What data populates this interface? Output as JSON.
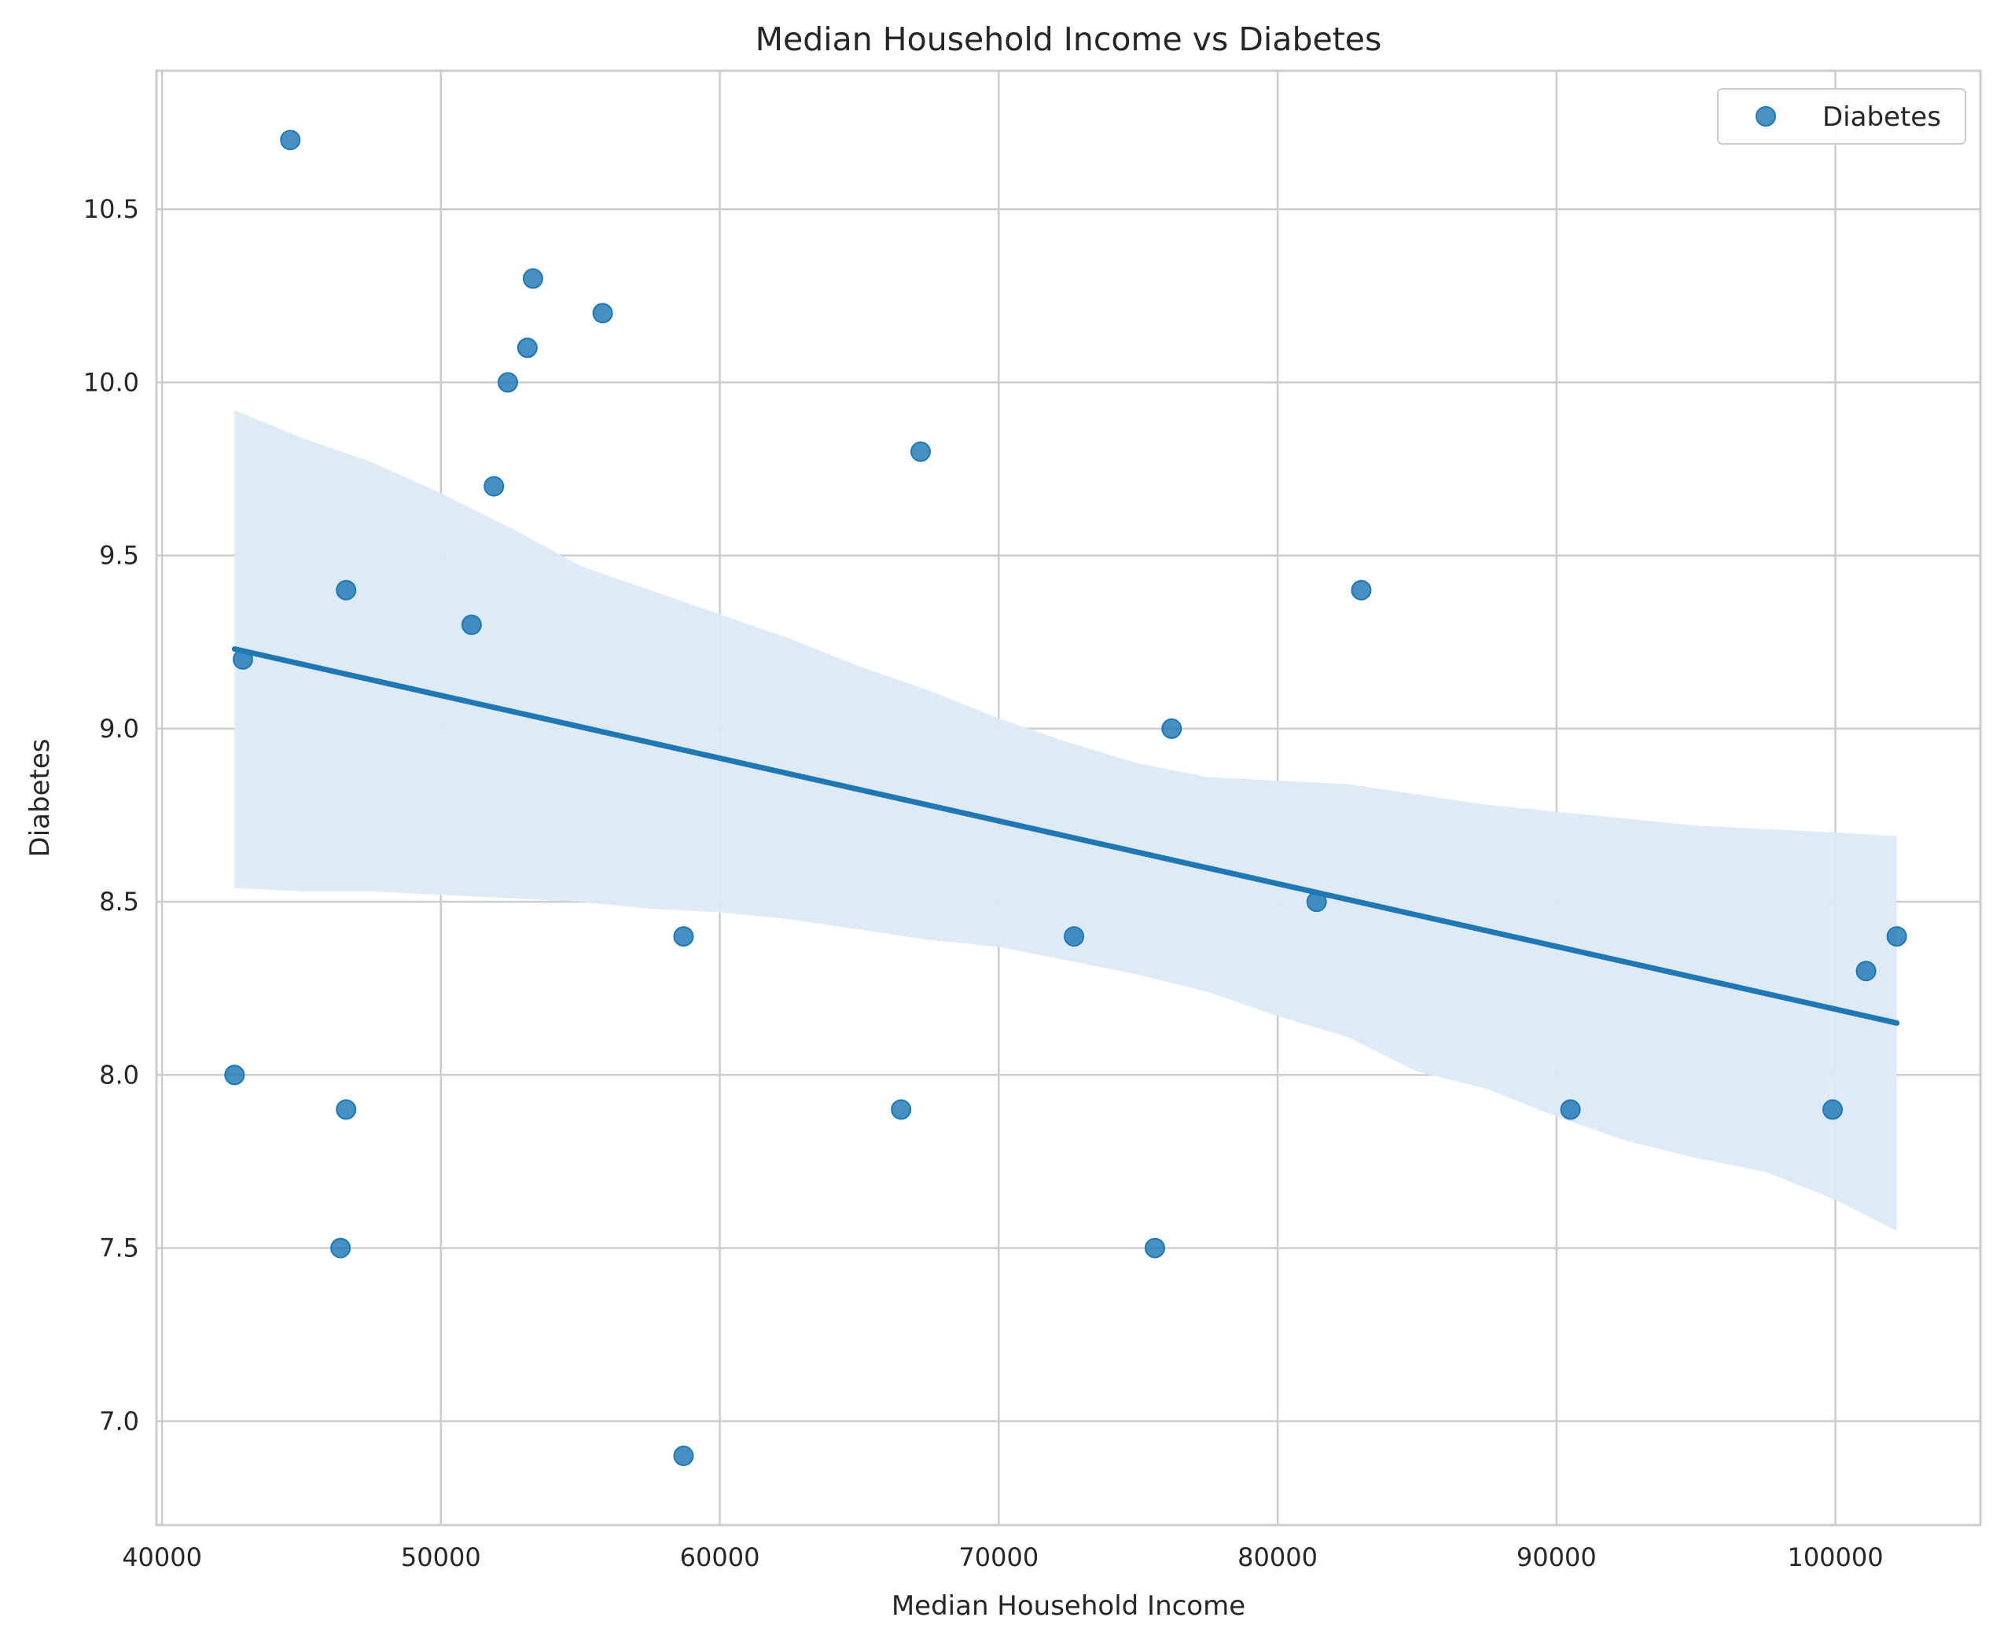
{
  "chart_data": {
    "type": "scatter",
    "title": "Median Household Income vs Diabetes",
    "xlabel": "Median Household Income",
    "ylabel": "Diabetes",
    "xlim": [
      39800,
      105200
    ],
    "ylim": [
      6.7,
      10.9
    ],
    "xticks": [
      40000,
      50000,
      60000,
      70000,
      80000,
      90000,
      100000
    ],
    "yticks": [
      7.0,
      7.5,
      8.0,
      8.5,
      9.0,
      9.5,
      10.0,
      10.5
    ],
    "grid": true,
    "legend": {
      "position": "top-right",
      "entries": [
        "Diabetes"
      ]
    },
    "colors": {
      "points": "#1f77b4",
      "line": "#1f77b4",
      "band": "#dce9f5",
      "grid": "#cccccc"
    },
    "series": [
      {
        "name": "Diabetes",
        "points": [
          {
            "x": 44600,
            "y": 10.7
          },
          {
            "x": 53300,
            "y": 10.3
          },
          {
            "x": 55800,
            "y": 10.2
          },
          {
            "x": 53100,
            "y": 10.1
          },
          {
            "x": 52400,
            "y": 10.0
          },
          {
            "x": 67200,
            "y": 9.8
          },
          {
            "x": 51900,
            "y": 9.7
          },
          {
            "x": 46600,
            "y": 9.4
          },
          {
            "x": 83000,
            "y": 9.4
          },
          {
            "x": 51100,
            "y": 9.3
          },
          {
            "x": 42900,
            "y": 9.2
          },
          {
            "x": 76200,
            "y": 9.0
          },
          {
            "x": 81400,
            "y": 8.5
          },
          {
            "x": 58700,
            "y": 8.4
          },
          {
            "x": 72700,
            "y": 8.4
          },
          {
            "x": 102200,
            "y": 8.4
          },
          {
            "x": 101100,
            "y": 8.3
          },
          {
            "x": 42600,
            "y": 8.0
          },
          {
            "x": 46600,
            "y": 7.9
          },
          {
            "x": 66500,
            "y": 7.9
          },
          {
            "x": 90500,
            "y": 7.9
          },
          {
            "x": 99900,
            "y": 7.9
          },
          {
            "x": 46400,
            "y": 7.5
          },
          {
            "x": 75600,
            "y": 7.5
          },
          {
            "x": 58700,
            "y": 6.9
          }
        ]
      }
    ],
    "regression": {
      "line": [
        {
          "x": 42600,
          "y": 9.23
        },
        {
          "x": 102200,
          "y": 8.15
        }
      ],
      "band_upper": [
        {
          "x": 42600,
          "y": 9.92
        },
        {
          "x": 45000,
          "y": 9.84
        },
        {
          "x": 47500,
          "y": 9.77
        },
        {
          "x": 50000,
          "y": 9.68
        },
        {
          "x": 52500,
          "y": 9.58
        },
        {
          "x": 55000,
          "y": 9.47
        },
        {
          "x": 57500,
          "y": 9.4
        },
        {
          "x": 60000,
          "y": 9.33
        },
        {
          "x": 62500,
          "y": 9.26
        },
        {
          "x": 65000,
          "y": 9.18
        },
        {
          "x": 67500,
          "y": 9.11
        },
        {
          "x": 70000,
          "y": 9.03
        },
        {
          "x": 72500,
          "y": 8.96
        },
        {
          "x": 75000,
          "y": 8.9
        },
        {
          "x": 77500,
          "y": 8.86
        },
        {
          "x": 80000,
          "y": 8.85
        },
        {
          "x": 82500,
          "y": 8.84
        },
        {
          "x": 85000,
          "y": 8.81
        },
        {
          "x": 87500,
          "y": 8.78
        },
        {
          "x": 90000,
          "y": 8.76
        },
        {
          "x": 92500,
          "y": 8.74
        },
        {
          "x": 95000,
          "y": 8.72
        },
        {
          "x": 97500,
          "y": 8.71
        },
        {
          "x": 100000,
          "y": 8.7
        },
        {
          "x": 102200,
          "y": 8.69
        }
      ],
      "band_lower": [
        {
          "x": 42600,
          "y": 8.54
        },
        {
          "x": 45000,
          "y": 8.53
        },
        {
          "x": 47500,
          "y": 8.53
        },
        {
          "x": 50000,
          "y": 8.52
        },
        {
          "x": 52500,
          "y": 8.51
        },
        {
          "x": 55000,
          "y": 8.5
        },
        {
          "x": 57500,
          "y": 8.48
        },
        {
          "x": 60000,
          "y": 8.47
        },
        {
          "x": 62500,
          "y": 8.45
        },
        {
          "x": 65000,
          "y": 8.42
        },
        {
          "x": 67500,
          "y": 8.39
        },
        {
          "x": 70000,
          "y": 8.37
        },
        {
          "x": 72500,
          "y": 8.33
        },
        {
          "x": 75000,
          "y": 8.29
        },
        {
          "x": 77500,
          "y": 8.24
        },
        {
          "x": 80000,
          "y": 8.17
        },
        {
          "x": 82500,
          "y": 8.11
        },
        {
          "x": 85000,
          "y": 8.01
        },
        {
          "x": 87500,
          "y": 7.96
        },
        {
          "x": 90000,
          "y": 7.88
        },
        {
          "x": 92500,
          "y": 7.81
        },
        {
          "x": 95000,
          "y": 7.76
        },
        {
          "x": 97500,
          "y": 7.72
        },
        {
          "x": 100000,
          "y": 7.64
        },
        {
          "x": 102200,
          "y": 7.55
        }
      ]
    }
  }
}
